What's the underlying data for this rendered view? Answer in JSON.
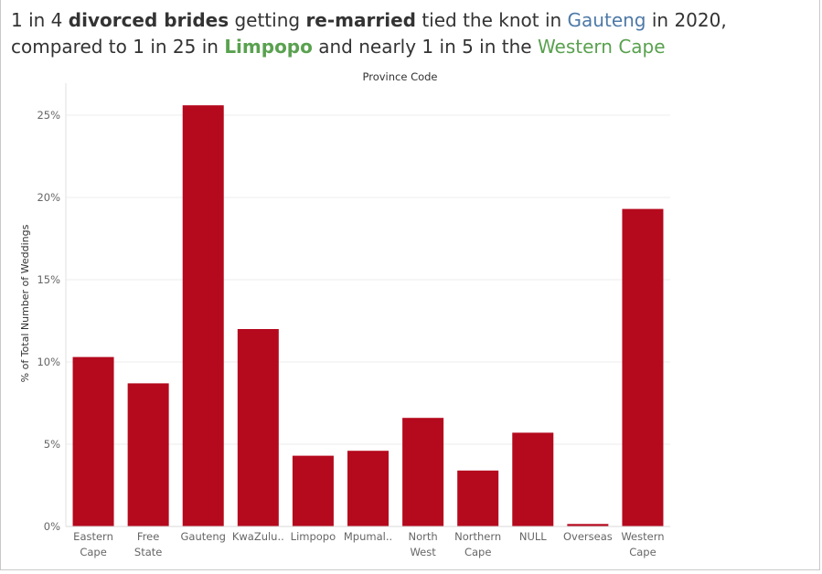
{
  "title": {
    "p1": "1 in 4 ",
    "p2": "divorced brides",
    "p3": " getting ",
    "p4": "re-married",
    "p5": " tied the knot in ",
    "p6": "Gauteng",
    "p7": " in 2020, compared to 1 in 25 in ",
    "p8": "Limpopo",
    "p9": " and nearly 1 in 5 in the ",
    "p10": "Western Cape"
  },
  "colors": {
    "bar": "#b5091d",
    "gauteng": "#4e79a7",
    "highlight_green": "#59a14f"
  },
  "chart_data": {
    "type": "bar",
    "column_header": "Province Code",
    "ylabel": "% of Total Number of Weddings",
    "ylim": [
      0,
      26.5
    ],
    "y_ticks": [
      0,
      5,
      10,
      15,
      20,
      25
    ],
    "y_tick_labels": [
      "0%",
      "5%",
      "10%",
      "15%",
      "20%",
      "25%"
    ],
    "grid": true,
    "categories": [
      [
        "Eastern",
        "Cape"
      ],
      [
        "Free",
        "State"
      ],
      [
        "Gauteng"
      ],
      [
        "KwaZulu.."
      ],
      [
        "Limpopo"
      ],
      [
        "Mpumal.."
      ],
      [
        "North",
        "West"
      ],
      [
        "Northern",
        "Cape"
      ],
      [
        "NULL"
      ],
      [
        "Overseas"
      ],
      [
        "Western",
        "Cape"
      ]
    ],
    "values": [
      10.3,
      8.7,
      25.6,
      12.0,
      4.3,
      4.6,
      6.6,
      3.4,
      5.7,
      0.15,
      19.3
    ]
  }
}
